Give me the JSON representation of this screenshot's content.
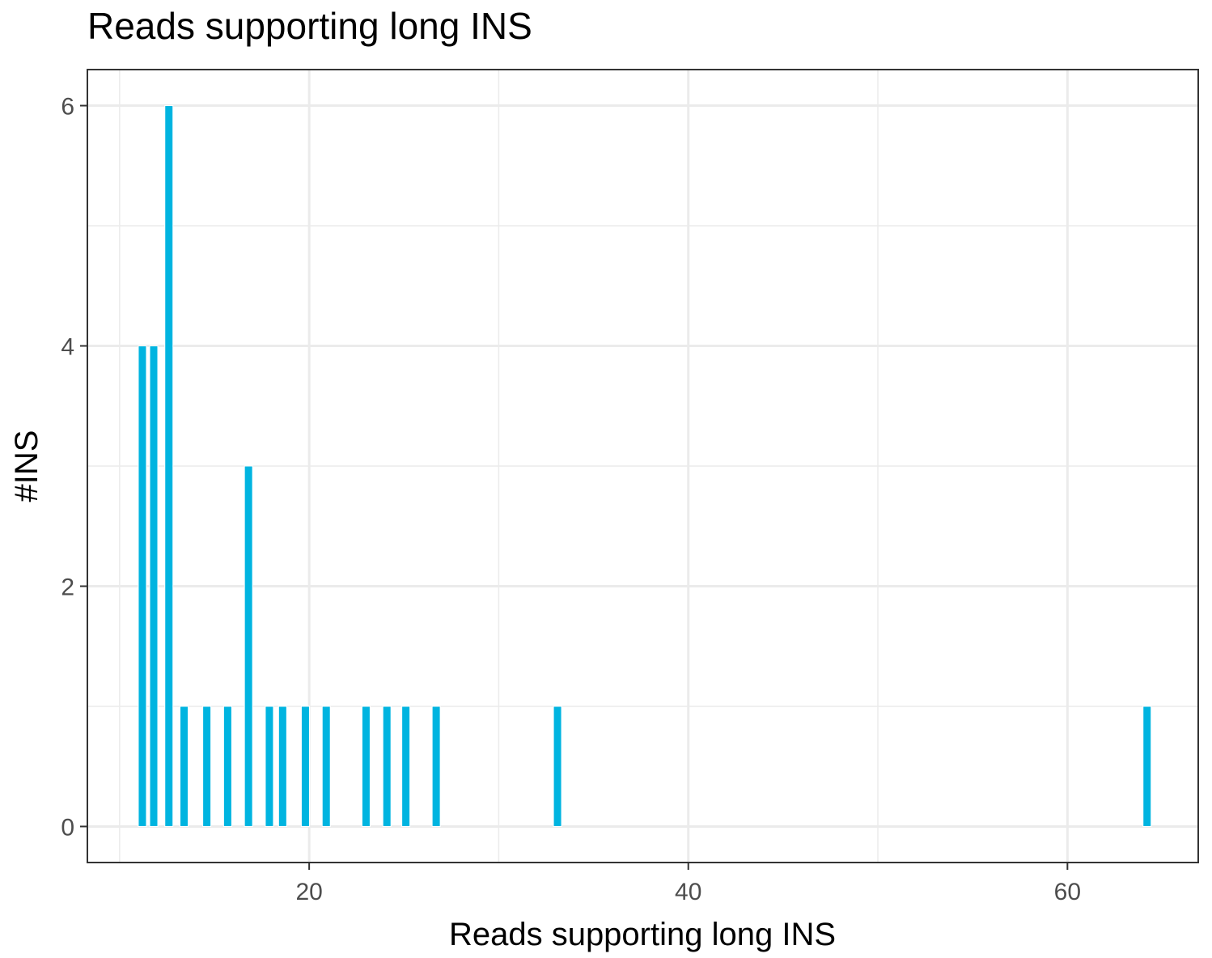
{
  "chart_data": {
    "type": "bar",
    "title": "Reads supporting long INS",
    "xlabel": "Reads supporting long INS",
    "ylabel": "#INS",
    "xlim": [
      8.3,
      66.9
    ],
    "ylim": [
      -0.3,
      6.3
    ],
    "xticks": [
      20,
      40,
      60
    ],
    "yticks": [
      0,
      2,
      4,
      6
    ],
    "grid": true,
    "bar_color": "#00b4e0",
    "x": [
      11.2,
      11.8,
      12.6,
      13.4,
      14.6,
      15.7,
      16.8,
      17.9,
      18.6,
      19.8,
      20.9,
      23.0,
      24.1,
      25.1,
      26.7,
      33.1,
      64.2
    ],
    "values": [
      4,
      4,
      6,
      1,
      1,
      1,
      3,
      1,
      1,
      1,
      1,
      1,
      1,
      1,
      1,
      1,
      1
    ]
  }
}
